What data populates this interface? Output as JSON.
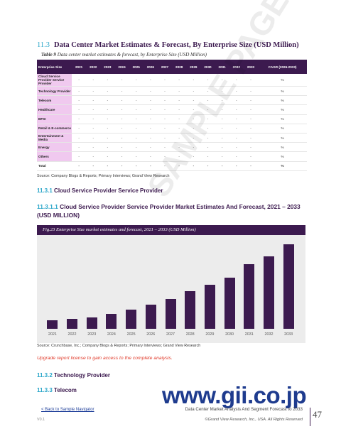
{
  "section": {
    "number": "11.3",
    "title": "Data Center Market Estimates & Forecast, By Enterprise Size (USD Million)"
  },
  "table": {
    "caption_label": "Table 9",
    "caption_text": "Data center market estimates & forecast, by Enterprise Size (USD Million)",
    "header_first": "Enterprise Size",
    "years": [
      "2021",
      "2022",
      "2023",
      "2024",
      "2025",
      "2026",
      "2027",
      "2028",
      "2029",
      "2030",
      "2031",
      "2032",
      "2033"
    ],
    "cagr_header": "CAGR (2026-2033)",
    "placeholder": "-",
    "cagr_placeholder": "%",
    "rows": [
      "Cloud Service Provider Service Provider",
      "Technology Provider",
      "Telecom",
      "Healthcare",
      "BFSI",
      "Retail & E-commerce",
      "Entertainment & Media",
      "Energy",
      "Others",
      "Total"
    ]
  },
  "table_source": "Source: Company Blogs & Reports; Primary Interviews; Grand View Research",
  "subsection_1": {
    "number": "11.3.1",
    "title": "Cloud Service Provider Service Provider"
  },
  "subsubsection": {
    "number": "11.3.1.1",
    "title": "Cloud Service Provider Service Provider Market Estimates And Forecast, 2021 – 2033 (USD MILLION)"
  },
  "figure_title": "Fig.23  Enterprise Size market estimates and forecast, 2021 – 2033 (USD Million)",
  "chart_data": {
    "type": "bar",
    "title": "Enterprise Size market estimates and forecast, 2021 – 2033 (USD Million)",
    "categories": [
      "2021",
      "2022",
      "2023",
      "2024",
      "2025",
      "2026",
      "2027",
      "2028",
      "2029",
      "2030",
      "2031",
      "2032",
      "2033"
    ],
    "values": [
      11,
      13,
      15,
      20,
      25,
      32,
      40,
      50,
      58,
      68,
      86,
      96,
      112
    ],
    "ylim": [
      0,
      115
    ],
    "color": "#3c1a4f",
    "grid": false
  },
  "figure_source": "Source: Crunchbase, Inc.; Company Blogs & Reports; Primary Interviews; Grand View Research",
  "upgrade_notice": "Upgrade report license to gain access to the complete analysis.",
  "subsection_2": {
    "number": "11.3.2",
    "title": "Technology Provider"
  },
  "subsection_3": {
    "number": "11.3.3",
    "title": "Telecom"
  },
  "watermark": "SAMPLE PAGE",
  "gii_url": "www.gii.co.jp",
  "footer": {
    "nav_link": "< Back to Sample Navigator",
    "version": "V0.1",
    "report_title": "Data Center Market Analysis And Segment Forecast to 2033",
    "copyright": "©Grand View Research, Inc., USA. All Rights Reserved",
    "page_number": "47"
  }
}
